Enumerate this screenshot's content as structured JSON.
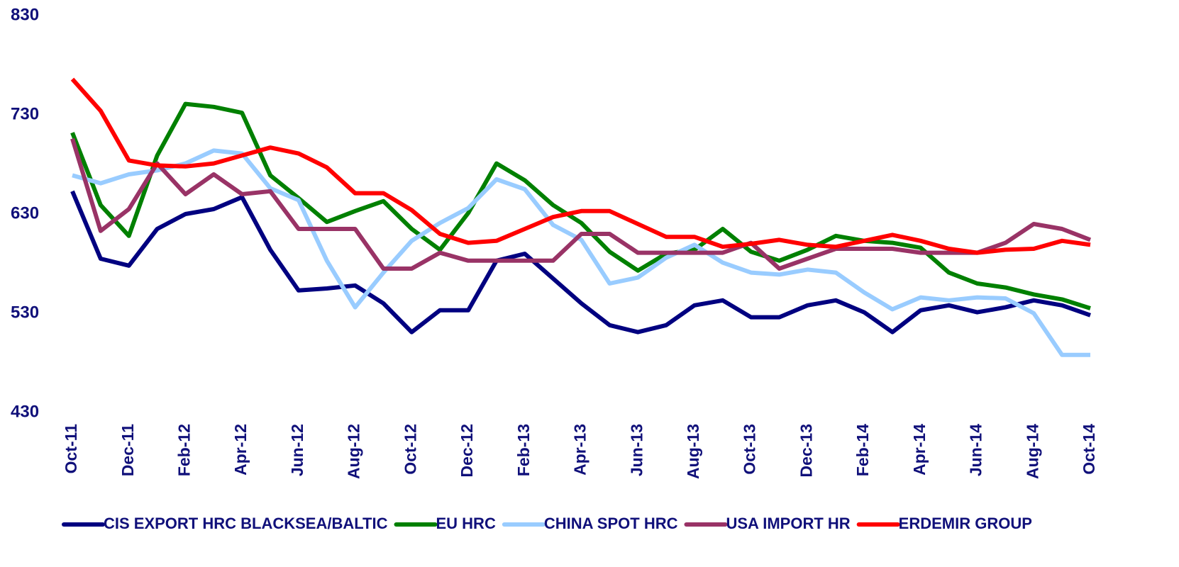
{
  "chart_data": {
    "type": "line",
    "categories": [
      "Oct-11",
      null,
      "Dec-11",
      null,
      "Feb-12",
      null,
      "Apr-12",
      null,
      "Jun-12",
      null,
      "Aug-12",
      null,
      "Oct-12",
      null,
      "Dec-12",
      null,
      "Feb-13",
      null,
      "Apr-13",
      null,
      "Jun-13",
      null,
      "Aug-13",
      null,
      "Oct-13",
      null,
      "Dec-13",
      null,
      "Feb-14",
      null,
      "Apr-14",
      null,
      "Jun-14",
      null,
      "Aug-14",
      null,
      "Oct-14"
    ],
    "ylim": [
      430,
      830
    ],
    "yticks": [
      430,
      530,
      630,
      730,
      830
    ],
    "grid": false,
    "legend": "bottom",
    "series": [
      {
        "name": "CIS EXPORT HRC BLACKSEA/BALTIC",
        "color": "#000080",
        "values": [
          653,
          585,
          578,
          615,
          630,
          635,
          647,
          594,
          553,
          555,
          558,
          540,
          511,
          533,
          533,
          583,
          590,
          565,
          540,
          518,
          511,
          518,
          538,
          543,
          526,
          526,
          538,
          543,
          531,
          511,
          533,
          538,
          531,
          536,
          543,
          538,
          528
        ]
      },
      {
        "name": "EU HRC",
        "color": "#008000",
        "values": [
          712,
          639,
          608,
          689,
          741,
          738,
          732,
          669,
          646,
          622,
          633,
          643,
          615,
          594,
          631,
          681,
          664,
          639,
          621,
          592,
          573,
          590,
          594,
          615,
          592,
          583,
          594,
          608,
          603,
          601,
          596,
          571,
          560,
          556,
          549,
          544,
          535
        ]
      },
      {
        "name": "CHINA SPOT HRC",
        "color": "#99ccff",
        "values": [
          669,
          661,
          670,
          674,
          681,
          694,
          691,
          656,
          644,
          583,
          536,
          571,
          603,
          621,
          636,
          665,
          655,
          619,
          604,
          560,
          566,
          586,
          599,
          581,
          571,
          569,
          574,
          571,
          551,
          534,
          546,
          543,
          546,
          545,
          530,
          488,
          488
        ]
      },
      {
        "name": "USA IMPORT HR",
        "color": "#993366",
        "values": [
          706,
          613,
          635,
          681,
          650,
          670,
          650,
          653,
          615,
          615,
          615,
          575,
          575,
          591,
          583,
          583,
          583,
          583,
          610,
          610,
          591,
          591,
          591,
          591,
          601,
          575,
          585,
          595,
          595,
          595,
          591,
          591,
          591,
          601,
          620,
          615,
          604
        ]
      },
      {
        "name": "ERDEMIR GROUP",
        "color": "#ff0000",
        "values": [
          766,
          734,
          684,
          679,
          678,
          681,
          689,
          697,
          691,
          677,
          651,
          651,
          634,
          610,
          601,
          603,
          615,
          627,
          633,
          633,
          620,
          607,
          607,
          597,
          600,
          604,
          599,
          597,
          603,
          609,
          603,
          595,
          591,
          594,
          595,
          603,
          599
        ]
      }
    ]
  }
}
